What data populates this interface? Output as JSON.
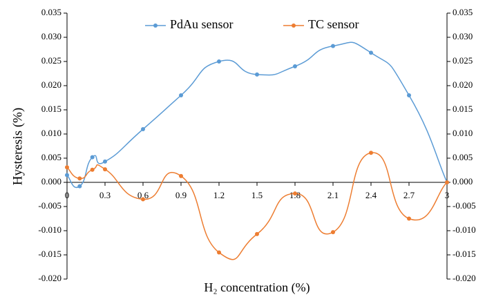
{
  "chart_data": {
    "type": "line",
    "x_label": "H₂ concentration (%)",
    "y_label": "Hysteresis (%)",
    "x": [
      0,
      0.1,
      0.2,
      0.3,
      0.6,
      0.9,
      1.2,
      1.5,
      1.8,
      2.1,
      2.4,
      2.7,
      3
    ],
    "series": [
      {
        "name": "PdAu sensor",
        "color": "#5b9bd5",
        "values": [
          0.0015,
          -0.0008,
          0.0052,
          0.0043,
          0.011,
          0.018,
          0.025,
          0.0223,
          0.024,
          0.0282,
          0.0268,
          0.018,
          0.0
        ]
      },
      {
        "name": "TC sensor",
        "color": "#ed7d31",
        "values": [
          0.0031,
          0.0008,
          0.0026,
          0.0027,
          -0.0035,
          0.0013,
          -0.0145,
          -0.0107,
          -0.0023,
          -0.0103,
          0.0061,
          -0.0075,
          0.0
        ]
      }
    ],
    "xlim": [
      0,
      3
    ],
    "xticks": [
      0,
      0.3,
      0.6,
      0.9,
      1.2,
      1.5,
      1.8,
      2.1,
      2.4,
      2.7,
      3
    ],
    "ylim": [
      -0.02,
      0.035
    ],
    "yticks": [
      {
        "value": -0.02,
        "label": "-0.020"
      },
      {
        "value": -0.015,
        "label": "-0.015"
      },
      {
        "value": -0.01,
        "label": "-0.010"
      },
      {
        "value": -0.005,
        "label": "-0.005"
      },
      {
        "value": 0,
        "label": "0.000"
      },
      {
        "value": 0.005,
        "label": "0.005"
      },
      {
        "value": 0.01,
        "label": "0.010"
      },
      {
        "value": 0.015,
        "label": "0.015"
      },
      {
        "value": 0.02,
        "label": "0.020"
      },
      {
        "value": 0.025,
        "label": "0.025"
      },
      {
        "value": 0.03,
        "label": "0.030"
      },
      {
        "value": 0.035,
        "label": "0.035"
      }
    ],
    "y2lim": [
      -0.02,
      0.035
    ],
    "y2ticks": [
      {
        "value": -0.02,
        "label": "-0.020"
      },
      {
        "value": -0.015,
        "label": "-0.015"
      },
      {
        "value": -0.01,
        "label": "-0.010"
      },
      {
        "value": -0.005,
        "label": "-0.005"
      },
      {
        "value": 0,
        "label": "0.000"
      },
      {
        "value": 0.005,
        "label": "0.005"
      },
      {
        "value": 0.01,
        "label": "0.010"
      },
      {
        "value": 0.015,
        "label": "0.015"
      },
      {
        "value": 0.02,
        "label": "0.020"
      },
      {
        "value": 0.025,
        "label": "0.025"
      },
      {
        "value": 0.03,
        "label": "0.030"
      },
      {
        "value": 0.035,
        "label": "0.035"
      }
    ],
    "legend": "top",
    "grid": false
  }
}
